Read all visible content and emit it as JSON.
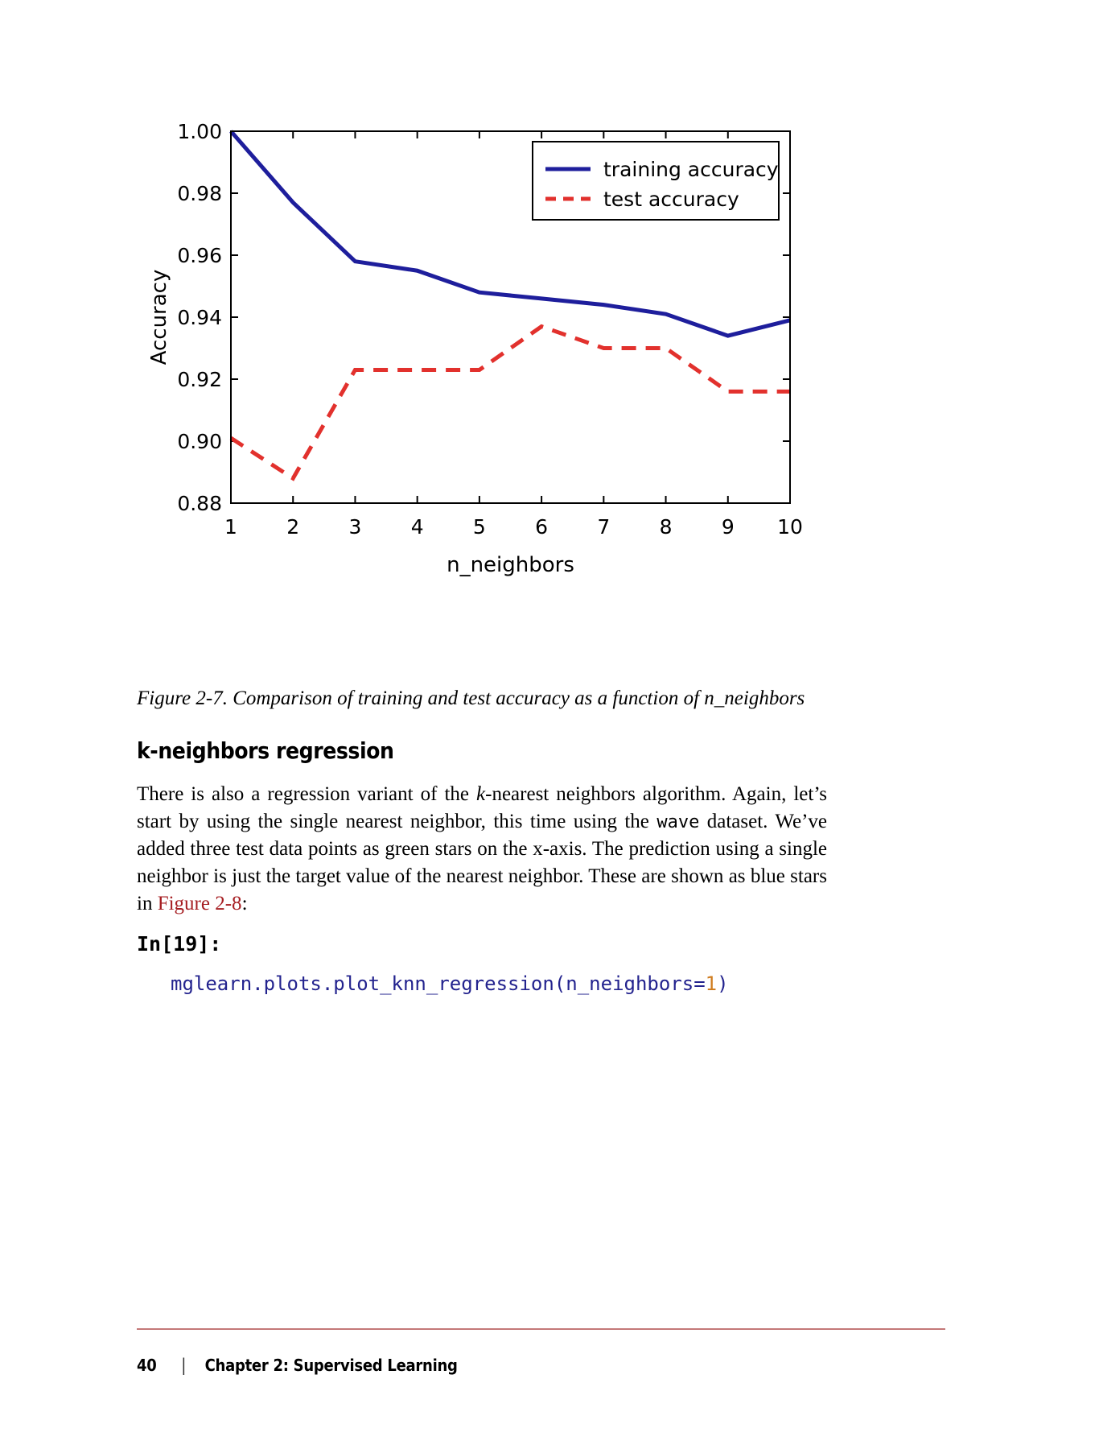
{
  "colors": {
    "xref_link": "#a61e22",
    "code_text": "#23238e",
    "code_number": "#cf7c1f",
    "footer_rule": "#c47878"
  },
  "chart_data": {
    "type": "line",
    "x": [
      1,
      2,
      3,
      4,
      5,
      6,
      7,
      8,
      9,
      10
    ],
    "series": [
      {
        "name": "training accuracy",
        "color": "#1e1e9c",
        "style": "solid",
        "values": [
          1.0,
          0.977,
          0.958,
          0.955,
          0.948,
          0.946,
          0.944,
          0.941,
          0.934,
          0.939
        ]
      },
      {
        "name": "test accuracy",
        "color": "#e2312d",
        "style": "dashed",
        "values": [
          0.901,
          0.888,
          0.923,
          0.923,
          0.923,
          0.937,
          0.93,
          0.93,
          0.916,
          0.916
        ]
      }
    ],
    "title": "",
    "xlabel": "n_neighbors",
    "ylabel": "Accuracy",
    "xlim": [
      1,
      10
    ],
    "ylim": [
      0.88,
      1.0
    ],
    "xticks": [
      1,
      2,
      3,
      4,
      5,
      6,
      7,
      8,
      9,
      10
    ],
    "yticks": [
      0.88,
      0.9,
      0.92,
      0.94,
      0.96,
      0.98,
      1.0
    ],
    "grid": false,
    "legend_position": "upper right"
  },
  "figure": {
    "caption": "Figure 2-7. Comparison of training and test accuracy as a function of n_neighbors"
  },
  "section": {
    "heading": "k-neighbors regression"
  },
  "paragraph": {
    "lines": [
      {
        "justify": true,
        "segments": [
          {
            "t": "There is also a regression variant of the "
          },
          {
            "t": "k",
            "s": "italic"
          },
          {
            "t": "-nearest neighbors algorithm. Again, let’s"
          }
        ]
      },
      {
        "justify": true,
        "segments": [
          {
            "t": "start by using the single nearest neighbor, this time using the "
          },
          {
            "t": "wave",
            "s": "mono"
          },
          {
            "t": " dataset. We’ve"
          }
        ]
      },
      {
        "justify": true,
        "segments": [
          {
            "t": "added three test data points as green stars on the x-axis. The prediction using a single"
          }
        ]
      },
      {
        "justify": true,
        "segments": [
          {
            "t": "neighbor is just the target value of the nearest neighbor. These are shown as blue stars"
          }
        ]
      },
      {
        "justify": false,
        "segments": [
          {
            "t": "in "
          },
          {
            "t": "Figure 2-8",
            "s": "link",
            "name": "figure-2-8-link"
          },
          {
            "t": ":"
          }
        ]
      }
    ]
  },
  "code": {
    "label": "In[19]:",
    "segments": [
      {
        "t": "mglearn.plots.plot_knn_regression(n_neighbors=",
        "s": "code"
      },
      {
        "t": "1",
        "s": "num"
      },
      {
        "t": ")",
        "s": "code"
      }
    ]
  },
  "footer": {
    "page_number": "40",
    "separator": "|",
    "chapter": "Chapter 2: Supervised Learning"
  }
}
